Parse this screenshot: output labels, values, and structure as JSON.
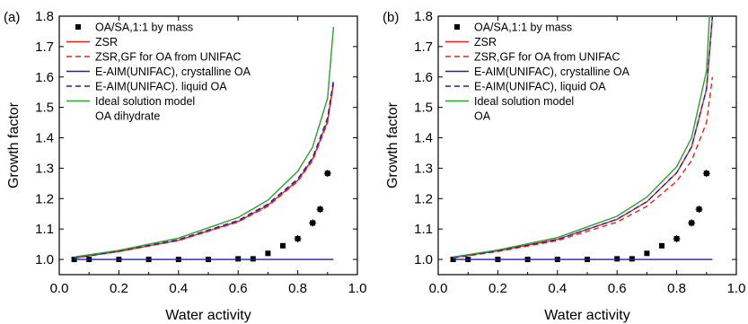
{
  "chart_data": [
    {
      "type": "scatter",
      "panel_label": "(a)",
      "xlabel": "Water activity",
      "ylabel": "Growth factor",
      "xlim": [
        0.0,
        1.0
      ],
      "ylim": [
        0.95,
        1.8
      ],
      "xticks": [
        "0.0",
        "0.2",
        "0.4",
        "0.6",
        "0.8",
        "1.0"
      ],
      "yticks": [
        "1.0",
        "1.1",
        "1.2",
        "1.3",
        "1.4",
        "1.5",
        "1.6",
        "1.7",
        "1.8"
      ],
      "legend_position": "top-left",
      "legend_note": "OA dihydrate",
      "series": [
        {
          "name": "OA/SA,1:1 by mass",
          "kind": "markers",
          "color": "#000000",
          "x": [
            0.05,
            0.1,
            0.2,
            0.3,
            0.4,
            0.5,
            0.6,
            0.65,
            0.7,
            0.75,
            0.8,
            0.85,
            0.875,
            0.9
          ],
          "y": [
            1.0,
            1.0,
            1.0,
            1.0,
            1.0,
            1.0,
            1.002,
            1.002,
            1.02,
            1.045,
            1.068,
            1.12,
            1.165,
            1.283
          ]
        },
        {
          "name": "ZSR",
          "kind": "line",
          "dash": "solid",
          "color": "#e8231f",
          "x": [
            0.05,
            0.2,
            0.4,
            0.6,
            0.7,
            0.8,
            0.85,
            0.9,
            0.92
          ],
          "y": [
            1.005,
            1.026,
            1.063,
            1.125,
            1.178,
            1.26,
            1.33,
            1.455,
            1.58
          ]
        },
        {
          "name": "ZSR,GF for OA from UNIFAC",
          "kind": "line",
          "dash": "dashed",
          "color": "#e8231f",
          "x": [
            0.05,
            0.2,
            0.4,
            0.6,
            0.7,
            0.8,
            0.85,
            0.9,
            0.92
          ],
          "y": [
            1.005,
            1.026,
            1.062,
            1.123,
            1.175,
            1.257,
            1.325,
            1.45,
            1.575
          ]
        },
        {
          "name": "E-AIM(UNIFAC), crystalline OA",
          "kind": "line",
          "dash": "solid",
          "color": "#1f1fb4",
          "x": [
            0.05,
            0.92
          ],
          "y": [
            1.0,
            1.0
          ]
        },
        {
          "name": "E-AIM(UNIFAC). liquid OA",
          "kind": "line",
          "dash": "dashed",
          "color": "#1f1fb4",
          "x": [
            0.05,
            0.2,
            0.4,
            0.6,
            0.7,
            0.8,
            0.85,
            0.9,
            0.92
          ],
          "y": [
            1.005,
            1.027,
            1.065,
            1.128,
            1.182,
            1.265,
            1.335,
            1.465,
            1.59
          ]
        },
        {
          "name": "Ideal solution model",
          "kind": "line",
          "dash": "solid",
          "color": "#2ca02c",
          "x": [
            0.05,
            0.2,
            0.4,
            0.6,
            0.7,
            0.8,
            0.85,
            0.9,
            0.92
          ],
          "y": [
            1.008,
            1.03,
            1.07,
            1.138,
            1.195,
            1.29,
            1.37,
            1.53,
            1.765
          ]
        }
      ]
    },
    {
      "type": "scatter",
      "panel_label": "(b)",
      "xlabel": "Water activity",
      "ylabel": "Growth factor",
      "xlim": [
        0.0,
        1.0
      ],
      "ylim": [
        0.95,
        1.8
      ],
      "xticks": [
        "0.0",
        "0.2",
        "0.4",
        "0.6",
        "0.8",
        "1.0"
      ],
      "yticks": [
        "1.0",
        "1.1",
        "1.2",
        "1.3",
        "1.4",
        "1.5",
        "1.6",
        "1.7",
        "1.8"
      ],
      "legend_position": "top-left",
      "legend_note": "OA",
      "series": [
        {
          "name": "OA/SA,1:1 by mass",
          "kind": "markers",
          "color": "#000000",
          "x": [
            0.05,
            0.1,
            0.2,
            0.3,
            0.4,
            0.5,
            0.6,
            0.65,
            0.7,
            0.75,
            0.8,
            0.85,
            0.875,
            0.9
          ],
          "y": [
            1.0,
            1.0,
            1.0,
            1.0,
            1.0,
            1.0,
            1.002,
            1.002,
            1.02,
            1.045,
            1.068,
            1.12,
            1.165,
            1.283
          ]
        },
        {
          "name": "ZSR",
          "kind": "line",
          "dash": "solid",
          "color": "#e8231f",
          "x": [
            0.05,
            0.2,
            0.4,
            0.6,
            0.7,
            0.8,
            0.85,
            0.9,
            0.92
          ],
          "y": [
            1.006,
            1.028,
            1.066,
            1.132,
            1.19,
            1.285,
            1.37,
            1.56,
            1.8
          ]
        },
        {
          "name": "ZSR,GF for OA from UNIFAC",
          "kind": "line",
          "dash": "dashed",
          "color": "#e8231f",
          "x": [
            0.05,
            0.2,
            0.4,
            0.6,
            0.7,
            0.8,
            0.85,
            0.9,
            0.92
          ],
          "y": [
            1.005,
            1.026,
            1.062,
            1.123,
            1.175,
            1.257,
            1.325,
            1.45,
            1.6
          ]
        },
        {
          "name": "E-AIM(UNIFAC), crystalline OA",
          "kind": "line",
          "dash": "solid",
          "color": "#1f1fb4",
          "x": [
            0.05,
            0.92
          ],
          "y": [
            1.0,
            1.0
          ]
        },
        {
          "name": "E-AIM(UNIFAC), liquid OA",
          "kind": "line",
          "dash": "dashed",
          "color": "#1f1fb4",
          "x": [
            0.05,
            0.2,
            0.4,
            0.6,
            0.7,
            0.8,
            0.85,
            0.9,
            0.92
          ],
          "y": [
            1.006,
            1.028,
            1.066,
            1.132,
            1.19,
            1.285,
            1.37,
            1.56,
            1.8
          ]
        },
        {
          "name": "Ideal solution model",
          "kind": "line",
          "dash": "solid",
          "color": "#2ca02c",
          "x": [
            0.05,
            0.2,
            0.4,
            0.6,
            0.7,
            0.8,
            0.85,
            0.9,
            0.91
          ],
          "y": [
            1.008,
            1.031,
            1.072,
            1.142,
            1.205,
            1.305,
            1.4,
            1.62,
            1.8
          ]
        }
      ]
    }
  ]
}
